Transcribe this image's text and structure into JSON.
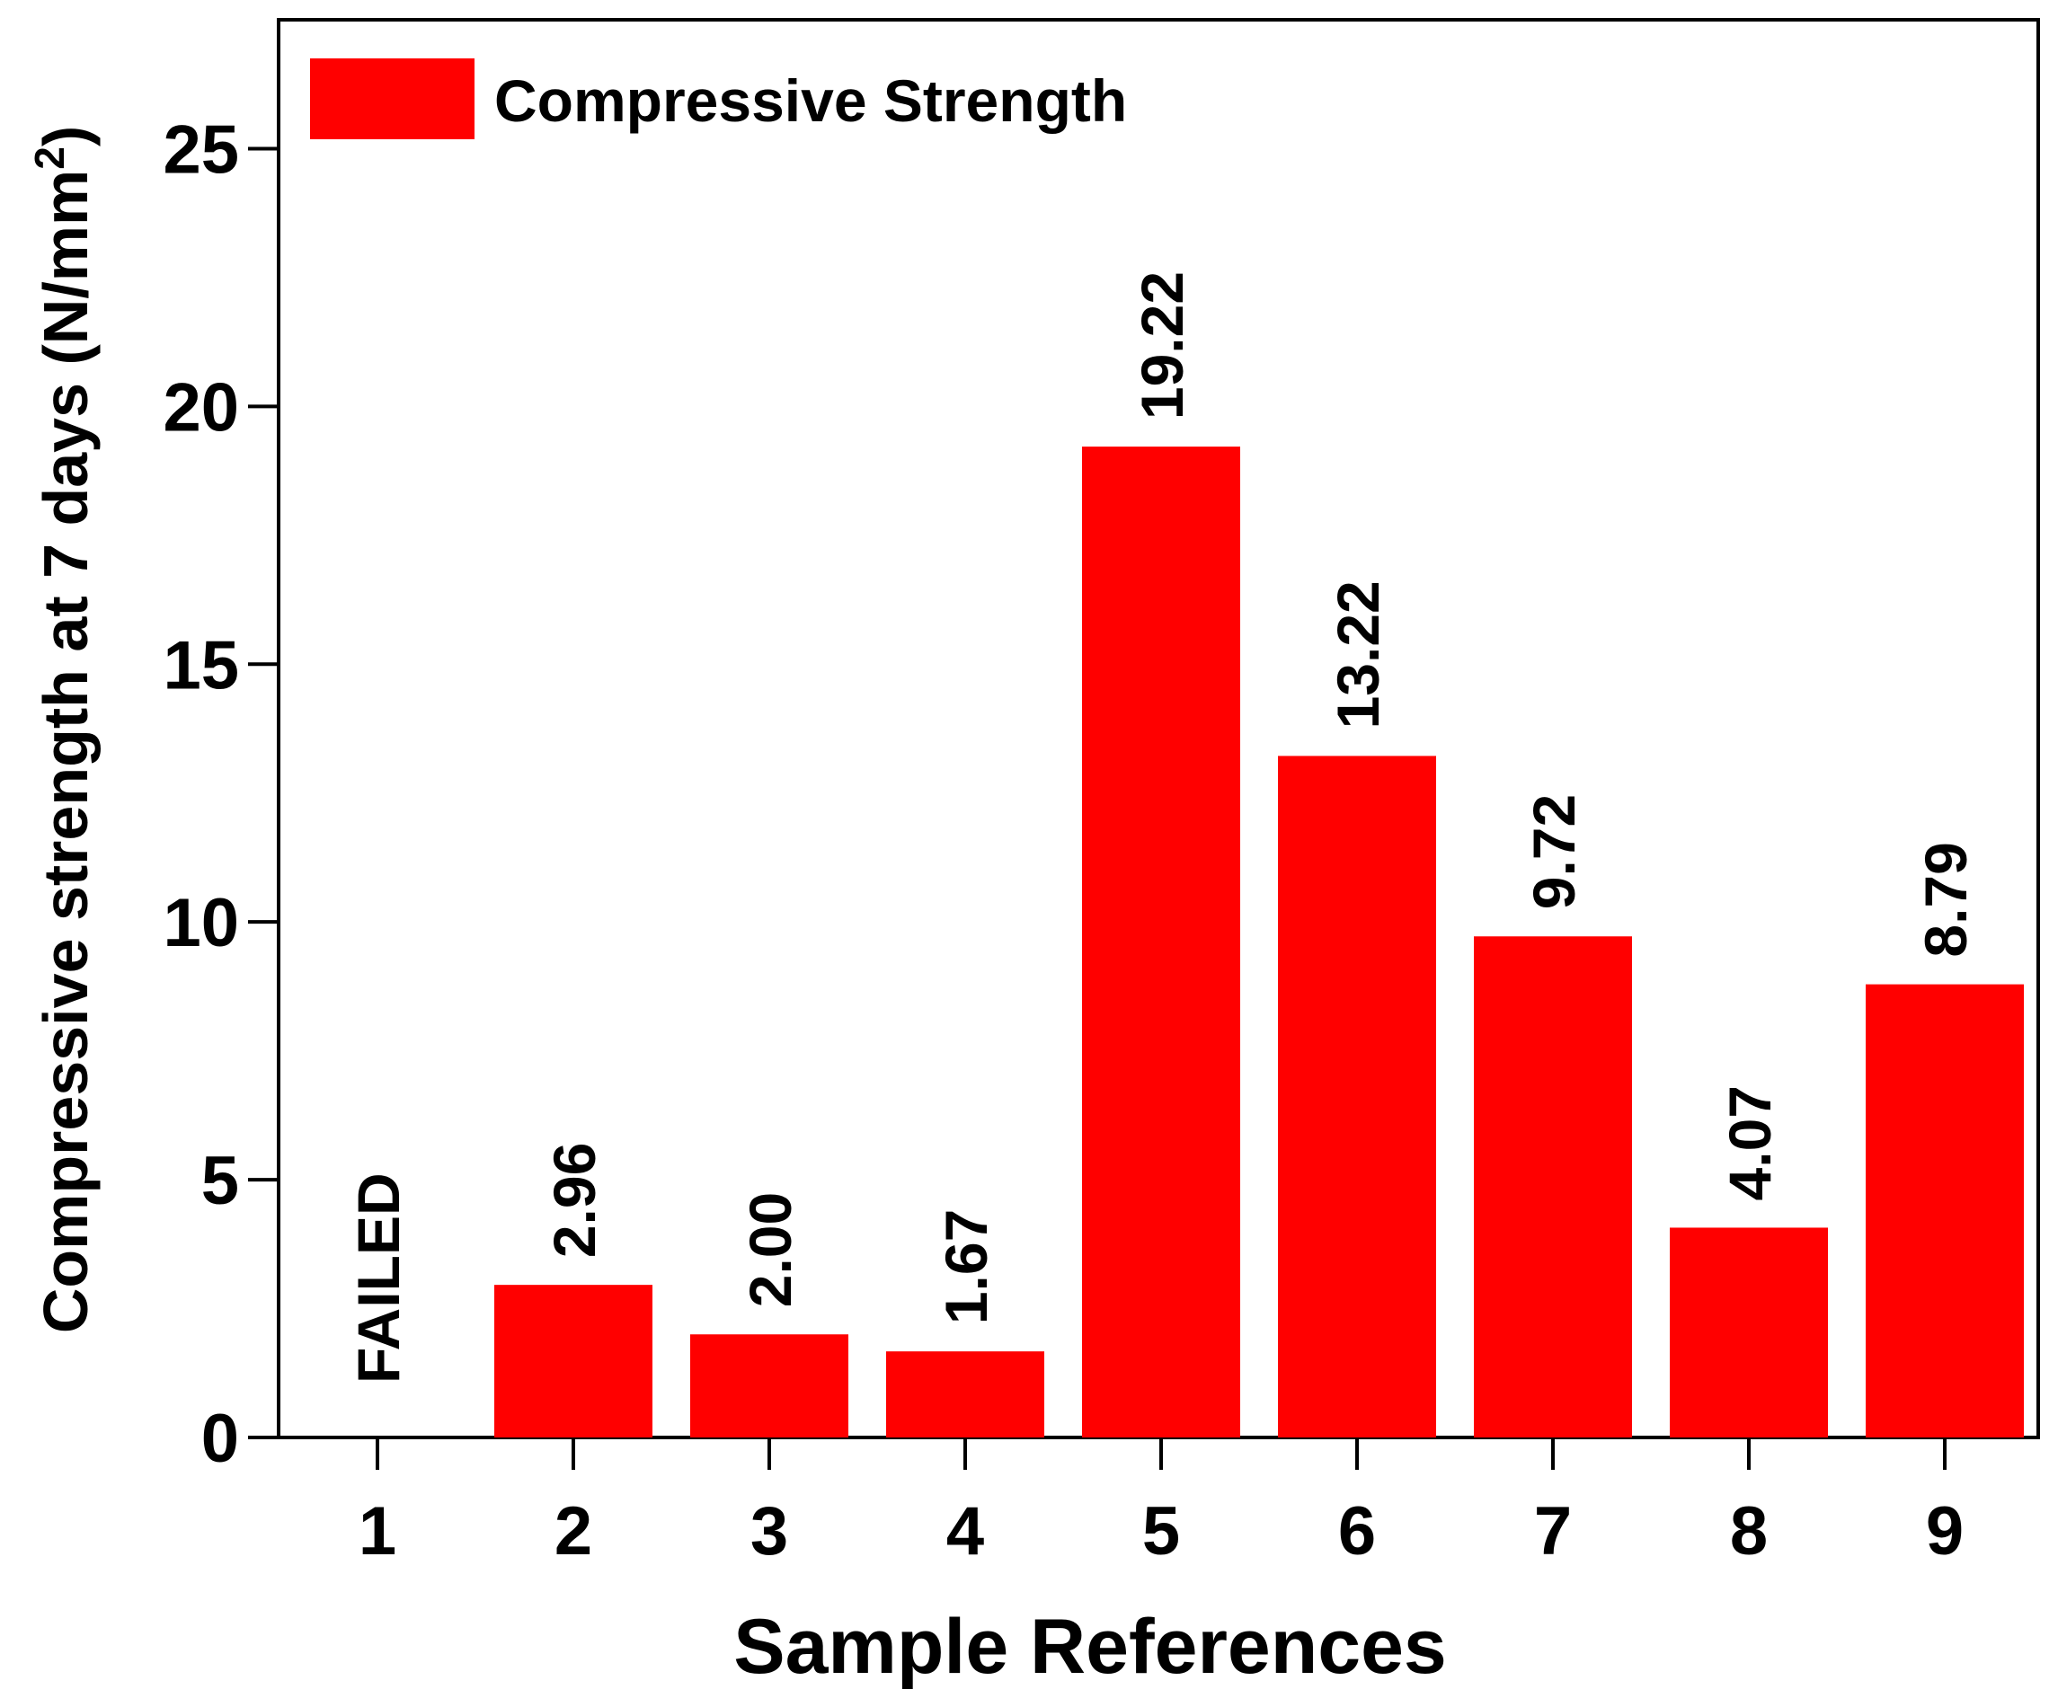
{
  "chart_data": {
    "type": "bar",
    "categories": [
      "1",
      "2",
      "3",
      "4",
      "5",
      "6",
      "7",
      "8",
      "9"
    ],
    "series": [
      {
        "name": "Compressive Strength",
        "values": [
          null,
          2.96,
          2.0,
          1.67,
          19.22,
          13.22,
          9.72,
          4.07,
          8.79
        ],
        "color": "#ff0000"
      }
    ],
    "data_labels": [
      "FAILED",
      "2.96",
      "2.00",
      "1.67",
      "19.22",
      "13.22",
      "9.72",
      "4.07",
      "8.79"
    ],
    "xlabel": "Sample References",
    "ylabel_main": "Compressive strength at 7 days (N/mm",
    "ylabel_sup": "2",
    "ylabel_end": ")",
    "ylim": [
      0,
      27.5
    ],
    "yticks": [
      0,
      5,
      10,
      15,
      20,
      25
    ],
    "grid": false,
    "legend_position": "top-left"
  }
}
